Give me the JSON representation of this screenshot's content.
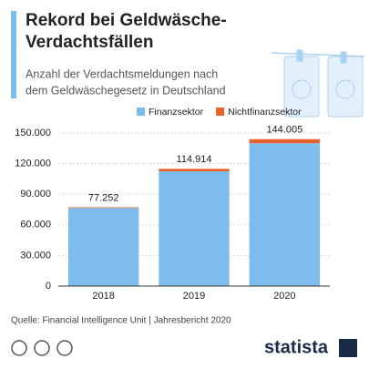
{
  "chart_data": {
    "type": "stacked_bar",
    "title": [
      "Rekord bei Geldwäsche-",
      "Verdachtsfällen"
    ],
    "subtitle": [
      "Anzahl der Verdachtsmeldungen nach",
      "dem Geldwäschegesetz in Deutschland"
    ],
    "categories": [
      "2018",
      "2019",
      "2020"
    ],
    "series": [
      {
        "name": "Finanzsektor",
        "color": "#7dbdee",
        "values": [
          76607,
          112500,
          140000
        ]
      },
      {
        "name": "Nichtfinanzsektor",
        "color": "#e8622c",
        "values": [
          645,
          2414,
          4005
        ]
      }
    ],
    "totals": {
      "values": [
        77252,
        114914,
        144005
      ],
      "value_labels": [
        "77.252",
        "114.914",
        "144.005"
      ]
    },
    "ylim": [
      0,
      150000
    ],
    "yticks": [
      0,
      {
        "value": 30000,
        "label": "30.000"
      },
      {
        "value": 60000,
        "label": "60.000"
      },
      {
        "value": 90000,
        "label": "90.000"
      },
      {
        "value": 120000,
        "label": "120.000"
      },
      {
        "value": 150000,
        "label": "150.000"
      }
    ],
    "grid": true,
    "legend": "top",
    "source": "Quelle: Financial Intelligence Unit | Jahresbericht 2020",
    "brand": "statista"
  }
}
